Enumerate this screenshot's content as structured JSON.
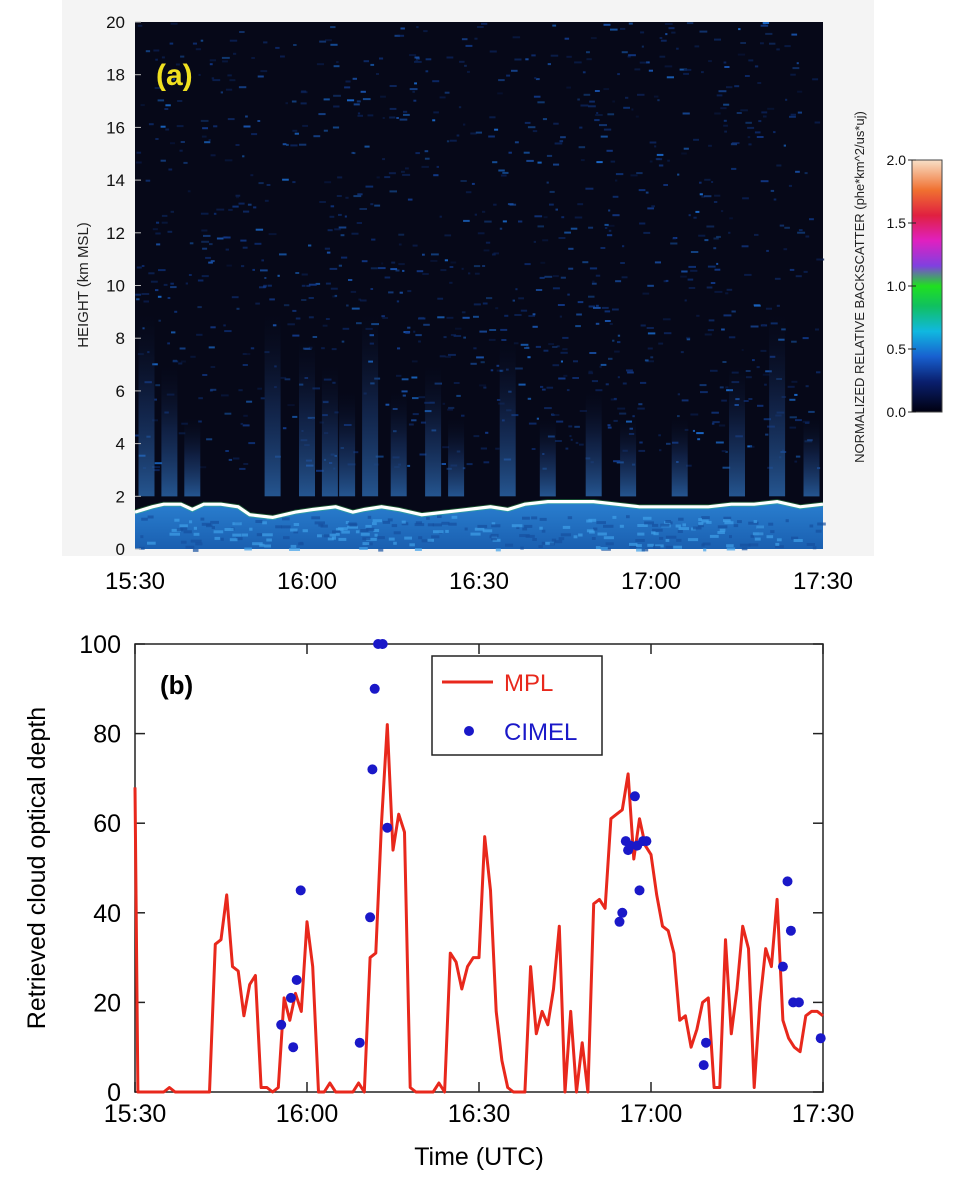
{
  "panel_a": {
    "label": "(a)",
    "ylabel": "HEIGHT (km MSL)",
    "colorbar_label": "NORMALIZED RELATIVE BACKSCATTER (phe*km^2/us*uj)",
    "colorbar_ticks": [
      "0.0",
      "0.5",
      "1.0",
      "1.5",
      "2.0"
    ],
    "colorbar_values": [
      0.0,
      0.5,
      1.0,
      1.5,
      2.0
    ],
    "colors": {
      "background": "#060818",
      "boundary_layer": "#1e6fc4",
      "cloud_top": "#ffffff",
      "label": "#f0e020"
    }
  },
  "panel_b": {
    "label": "(b)",
    "colors": {
      "mpl": "#e8281c",
      "cimel": "#1a18c8"
    }
  },
  "chart_data": [
    {
      "type": "heatmap",
      "xlabel": "",
      "ylabel": "HEIGHT (km MSL)",
      "x_ticks": [
        "15:30",
        "16:00",
        "16:30",
        "17:00",
        "17:30"
      ],
      "x_tick_values": [
        0,
        30,
        60,
        90,
        120
      ],
      "y_ticks": [
        "0",
        "2",
        "4",
        "6",
        "8",
        "10",
        "12",
        "14",
        "16",
        "18",
        "20"
      ],
      "y_tick_values": [
        0,
        2,
        4,
        6,
        8,
        10,
        12,
        14,
        16,
        18,
        20
      ],
      "xlim": [
        "15:30",
        "17:30"
      ],
      "ylim": [
        0,
        20
      ],
      "cloud_top_height_km": [
        [
          0,
          1.4
        ],
        [
          3,
          1.6
        ],
        [
          5,
          1.7
        ],
        [
          8,
          1.7
        ],
        [
          10,
          1.5
        ],
        [
          12,
          1.7
        ],
        [
          15,
          1.7
        ],
        [
          18,
          1.6
        ],
        [
          20,
          1.3
        ],
        [
          24,
          1.2
        ],
        [
          28,
          1.4
        ],
        [
          31,
          1.5
        ],
        [
          35,
          1.6
        ],
        [
          38,
          1.4
        ],
        [
          40,
          1.5
        ],
        [
          43,
          1.6
        ],
        [
          46,
          1.5
        ],
        [
          50,
          1.3
        ],
        [
          54,
          1.4
        ],
        [
          58,
          1.5
        ],
        [
          62,
          1.6
        ],
        [
          65,
          1.5
        ],
        [
          68,
          1.7
        ],
        [
          72,
          1.8
        ],
        [
          76,
          1.8
        ],
        [
          80,
          1.8
        ],
        [
          84,
          1.7
        ],
        [
          88,
          1.6
        ],
        [
          92,
          1.6
        ],
        [
          96,
          1.6
        ],
        [
          100,
          1.6
        ],
        [
          104,
          1.7
        ],
        [
          108,
          1.7
        ],
        [
          112,
          1.8
        ],
        [
          116,
          1.6
        ],
        [
          120,
          1.7
        ]
      ],
      "colorbar": {
        "label": "NORMALIZED RELATIVE BACKSCATTER (phe*km^2/us*uj)",
        "range": [
          0.0,
          2.0
        ]
      }
    },
    {
      "type": "line",
      "xlabel": "Time (UTC)",
      "ylabel": "Retrieved cloud optical depth",
      "x_ticks": [
        "15:30",
        "16:00",
        "16:30",
        "17:00",
        "17:30"
      ],
      "x_tick_values": [
        0,
        30,
        60,
        90,
        120
      ],
      "y_ticks": [
        "0",
        "20",
        "40",
        "60",
        "80",
        "100"
      ],
      "y_tick_values": [
        0,
        20,
        40,
        60,
        80,
        100
      ],
      "xlim": [
        "15:30",
        "17:30"
      ],
      "ylim": [
        0,
        100
      ],
      "legend_position": "top-right",
      "series": [
        {
          "name": "MPL",
          "kind": "line",
          "x": [
            0,
            0.5,
            1,
            2,
            4,
            5,
            6,
            7,
            8,
            9,
            10,
            11,
            12,
            13,
            14,
            15,
            16,
            17,
            18,
            19,
            20,
            21,
            22,
            23,
            24,
            25,
            26,
            27,
            28,
            29,
            30,
            31,
            32,
            33,
            34,
            35,
            36,
            37,
            38,
            39,
            40,
            41,
            42,
            43,
            44,
            45,
            46,
            47,
            48,
            49,
            50,
            51,
            52,
            53,
            54,
            55,
            56,
            57,
            58,
            59,
            60,
            61,
            62,
            63,
            64,
            65,
            66,
            67,
            68,
            69,
            70,
            71,
            72,
            73,
            74,
            75,
            76,
            77,
            78,
            79,
            80,
            81,
            82,
            83,
            84,
            85,
            86,
            87,
            88,
            89,
            90,
            91,
            92,
            93,
            94,
            95,
            96,
            97,
            98,
            99,
            100,
            101,
            102,
            103,
            104,
            105,
            106,
            107,
            108,
            109,
            110,
            111,
            112,
            113,
            114,
            115,
            116,
            117,
            118,
            119,
            120
          ],
          "y": [
            68,
            0,
            0,
            0,
            0,
            0,
            1,
            0,
            0,
            0,
            0,
            0,
            0,
            0,
            33,
            34,
            44,
            28,
            27,
            17,
            24,
            26,
            1,
            1,
            0,
            1,
            21,
            16,
            22,
            18,
            38,
            28,
            0,
            0,
            2,
            0,
            0,
            0,
            0,
            2,
            0,
            30,
            31,
            60,
            82,
            54,
            62,
            58,
            1,
            0,
            0,
            0,
            0,
            2,
            0,
            31,
            29,
            23,
            28,
            30,
            30,
            57,
            45,
            18,
            7,
            1,
            0,
            0,
            0,
            28,
            13,
            18,
            15,
            23,
            37,
            0,
            18,
            0,
            11,
            0,
            42,
            43,
            41,
            61,
            62,
            63,
            71,
            52,
            61,
            55,
            53,
            44,
            37,
            36,
            31,
            16,
            17,
            10,
            14,
            20,
            21,
            1,
            1,
            34,
            13,
            23,
            37,
            32,
            1,
            20,
            32,
            28,
            43,
            16,
            12,
            10,
            9,
            17,
            18,
            18,
            17
          ],
          "color": "#e8281c"
        },
        {
          "name": "CIMEL",
          "kind": "scatter",
          "x": [
            25.5,
            27.2,
            27.6,
            28.2,
            28.9,
            39.2,
            41.0,
            41.4,
            41.8,
            42.4,
            43.2,
            44.0,
            84.5,
            85.0,
            85.6,
            86.0,
            86.4,
            87.2,
            87.6,
            88.0,
            88.6,
            89.2,
            99.2,
            99.6,
            113.0,
            113.8,
            114.4,
            114.8,
            115.8,
            119.6
          ],
          "y": [
            15,
            21,
            10,
            25,
            45,
            11,
            39,
            72,
            90,
            100,
            100,
            59,
            38,
            40,
            56,
            54,
            55,
            66,
            55,
            45,
            56,
            56,
            6,
            11,
            28,
            47,
            36,
            20,
            20,
            12
          ],
          "color": "#1a18c8"
        }
      ]
    }
  ]
}
